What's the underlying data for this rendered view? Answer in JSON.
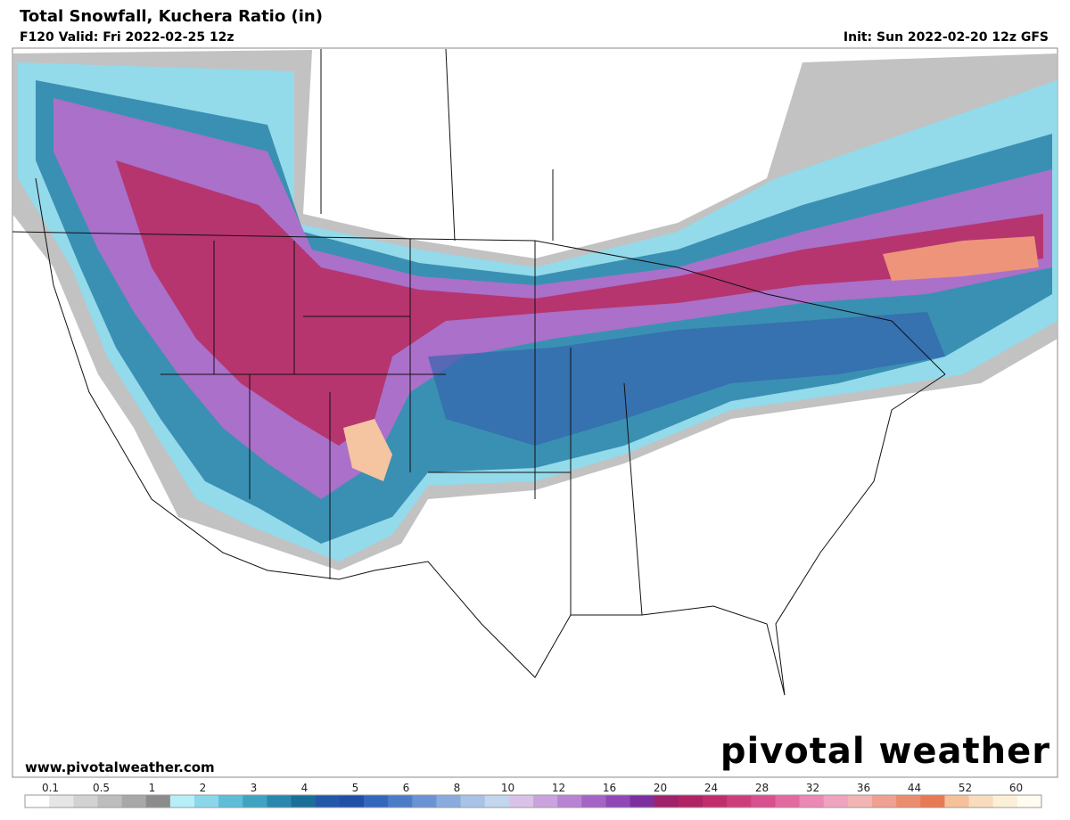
{
  "header": {
    "title": "Total Snowfall, Kuchera Ratio (in)",
    "valid": "F120 Valid: Fri 2022-02-25 12z",
    "init": "Init: Sun 2022-02-20 12z GFS"
  },
  "footer": {
    "website": "www.pivotalweather.com",
    "watermark": "pivotal weather"
  },
  "legend": {
    "labels": [
      0.1,
      0.5,
      1,
      2,
      3,
      4,
      5,
      6,
      8,
      10,
      12,
      16,
      20,
      24,
      28,
      32,
      36,
      44,
      52,
      60
    ],
    "colors": [
      "#ffffff",
      "#e6e6e6",
      "#d2d2d2",
      "#bdbdbd",
      "#a8a8a8",
      "#8c8c8c",
      "#b8eef7",
      "#8ad7ea",
      "#5fbdd6",
      "#3fa3c2",
      "#2a87ad",
      "#1a6f98",
      "#2358a8",
      "#1f4fa6",
      "#3367bb",
      "#4c7cc8",
      "#6a93d3",
      "#8aabdd",
      "#a9c3e6",
      "#c2d6ee",
      "#d9c2e8",
      "#caa3de",
      "#b883d3",
      "#a364c6",
      "#8f48b6",
      "#7d2f9f",
      "#a0226b",
      "#b02463",
      "#bf2e6a",
      "#cc3d7c",
      "#d8508d",
      "#e26aa0",
      "#eb88b4",
      "#f0a3bf",
      "#f2b4b4",
      "#f0a090",
      "#ec8c6f",
      "#e77a55",
      "#f5c09a",
      "#f9dcbc",
      "#fcefd8",
      "#fffbef"
    ]
  }
}
